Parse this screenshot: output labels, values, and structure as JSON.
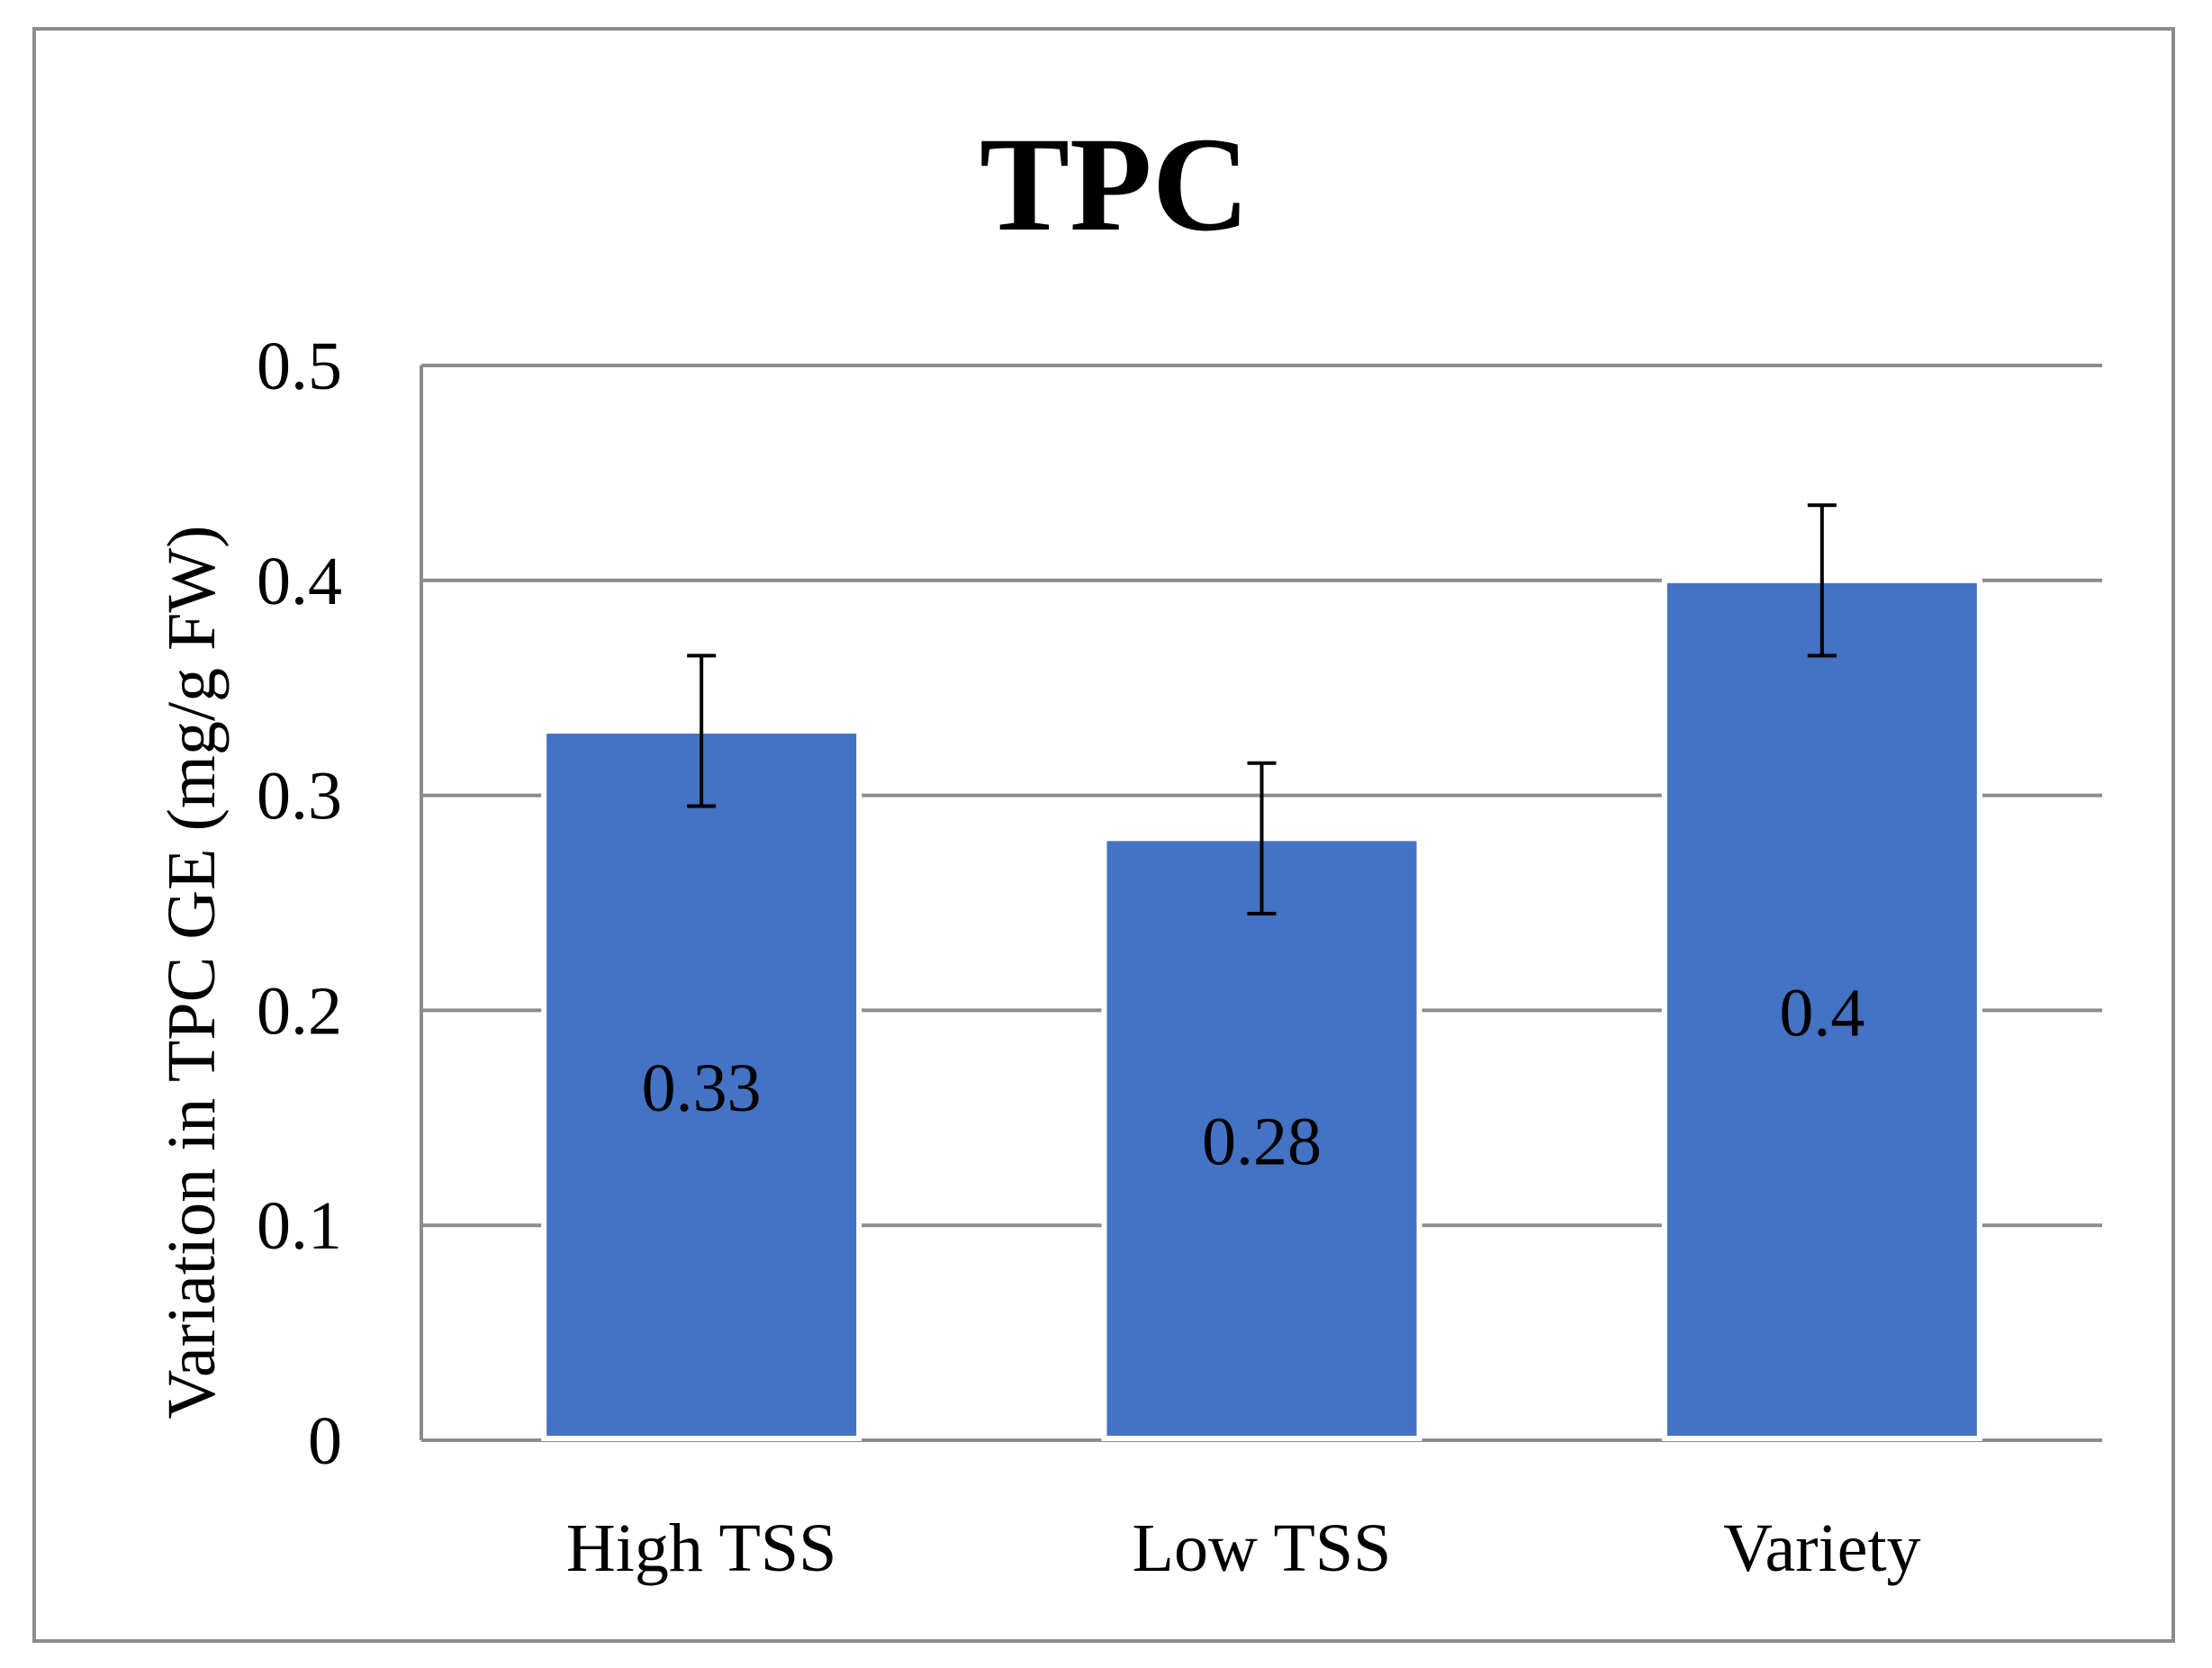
{
  "chart_data": {
    "type": "bar",
    "title": "TPC",
    "xlabel": "",
    "ylabel": "Variation in TPC GE (mg/g FW)",
    "categories": [
      "High TSS",
      "Low TSS",
      "Variety"
    ],
    "values": [
      0.33,
      0.28,
      0.4
    ],
    "value_labels": [
      "0.33",
      "0.28",
      "0.4"
    ],
    "error_bars": [
      0.035,
      0.035,
      0.035
    ],
    "ylim": [
      0,
      0.5
    ],
    "yticks": [
      0,
      0.1,
      0.2,
      0.3,
      0.4,
      0.5
    ],
    "ytick_labels": [
      "0",
      "0.1",
      "0.2",
      "0.3",
      "0.4",
      "0.5"
    ],
    "grid": true,
    "legend": "none",
    "bar_color": "#4472C4",
    "grid_color": "#8c8c8c"
  }
}
